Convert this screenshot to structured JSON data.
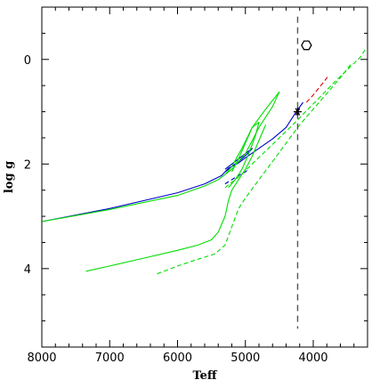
{
  "chart_data": {
    "type": "line",
    "title": "",
    "xlabel": "Teff",
    "ylabel": "log g",
    "xlim": [
      8000,
      3200
    ],
    "ylim": [
      5.5,
      -1.0
    ],
    "x_reversed": true,
    "y_reversed": true,
    "xticks": [
      8000,
      7000,
      6000,
      5000,
      4000
    ],
    "yticks": [
      0,
      2,
      4
    ],
    "xtick_labels": [
      "8000",
      "7000",
      "6000",
      "5000",
      "4000"
    ],
    "ytick_labels": [
      "0",
      "2",
      "4"
    ],
    "grid": false,
    "legend": "none",
    "series": [
      {
        "color": "#0000cc",
        "style": "solid",
        "points": [
          [
            8000,
            3.1
          ],
          [
            7000,
            2.85
          ],
          [
            6000,
            2.55
          ],
          [
            5600,
            2.38
          ],
          [
            5350,
            2.22
          ],
          [
            5250,
            2.08
          ],
          [
            5100,
            1.98
          ],
          [
            5000,
            1.88
          ],
          [
            4800,
            1.7
          ],
          [
            4600,
            1.52
          ],
          [
            4400,
            1.3
          ],
          [
            4250,
            1.0
          ],
          [
            4150,
            0.82
          ]
        ]
      },
      {
        "color": "#0000cc",
        "style": "solid",
        "points": [
          [
            5300,
            2.1
          ],
          [
            5150,
            1.95
          ],
          [
            5000,
            1.8
          ],
          [
            4900,
            1.7
          ],
          [
            4950,
            1.78
          ],
          [
            5050,
            1.9
          ],
          [
            5150,
            2.0
          ],
          [
            5300,
            2.15
          ]
        ]
      },
      {
        "color": "#0000cc",
        "style": "dashed",
        "points": [
          [
            5300,
            2.38
          ],
          [
            5200,
            2.3
          ],
          [
            5100,
            2.22
          ],
          [
            5000,
            2.15
          ],
          [
            4950,
            2.08
          ]
        ]
      },
      {
        "color": "#00dd00",
        "style": "solid",
        "points": [
          [
            8000,
            3.1
          ],
          [
            7000,
            2.87
          ],
          [
            6000,
            2.6
          ],
          [
            5600,
            2.42
          ],
          [
            5400,
            2.3
          ],
          [
            5300,
            2.2
          ],
          [
            5200,
            2.05
          ],
          [
            5050,
            1.7
          ],
          [
            4900,
            1.3
          ],
          [
            4700,
            0.95
          ],
          [
            4500,
            0.62
          ],
          [
            4600,
            0.9
          ],
          [
            4800,
            1.3
          ],
          [
            5000,
            1.8
          ],
          [
            5200,
            2.1
          ],
          [
            5300,
            2.2
          ]
        ]
      },
      {
        "color": "#00dd00",
        "style": "solid",
        "points": [
          [
            5200,
            2.15
          ],
          [
            5100,
            1.9
          ],
          [
            5000,
            1.6
          ],
          [
            4900,
            1.3
          ],
          [
            4800,
            1.2
          ],
          [
            4850,
            1.45
          ],
          [
            4950,
            1.8
          ],
          [
            5050,
            2.1
          ],
          [
            5150,
            2.3
          ],
          [
            5250,
            2.45
          ]
        ]
      },
      {
        "color": "#00dd00",
        "style": "solid",
        "points": [
          [
            7350,
            4.05
          ],
          [
            7000,
            3.95
          ],
          [
            6500,
            3.8
          ],
          [
            6000,
            3.65
          ],
          [
            5700,
            3.55
          ],
          [
            5500,
            3.45
          ],
          [
            5400,
            3.3
          ],
          [
            5300,
            3.0
          ],
          [
            5250,
            2.7
          ],
          [
            5200,
            2.5
          ],
          [
            5100,
            2.3
          ],
          [
            5000,
            2.1
          ],
          [
            4900,
            1.85
          ],
          [
            4800,
            1.55
          ],
          [
            4700,
            1.25
          ]
        ]
      },
      {
        "color": "#00dd00",
        "style": "dashed",
        "points": [
          [
            6300,
            4.1
          ],
          [
            6000,
            3.95
          ],
          [
            5700,
            3.82
          ],
          [
            5450,
            3.72
          ],
          [
            5300,
            3.55
          ],
          [
            5200,
            3.2
          ],
          [
            5100,
            2.85
          ],
          [
            5000,
            2.65
          ],
          [
            4800,
            2.3
          ],
          [
            4600,
            1.95
          ],
          [
            4400,
            1.6
          ],
          [
            4200,
            1.25
          ],
          [
            4000,
            0.95
          ],
          [
            3800,
            0.65
          ],
          [
            3600,
            0.35
          ],
          [
            3450,
            0.1
          ]
        ]
      },
      {
        "color": "#00dd00",
        "style": "dashed",
        "points": [
          [
            5300,
            2.45
          ],
          [
            5100,
            2.25
          ],
          [
            4900,
            2.0
          ],
          [
            4700,
            1.75
          ],
          [
            4500,
            1.5
          ],
          [
            4300,
            1.25
          ],
          [
            4100,
            0.98
          ],
          [
            3900,
            0.72
          ],
          [
            3700,
            0.45
          ],
          [
            3500,
            0.2
          ],
          [
            3300,
            -0.05
          ],
          [
            3220,
            -0.22
          ]
        ]
      },
      {
        "color": "#dd0000",
        "style": "dashed",
        "points": [
          [
            4100,
            0.82
          ],
          [
            4000,
            0.68
          ],
          [
            3900,
            0.52
          ],
          [
            3780,
            0.32
          ]
        ]
      }
    ],
    "markers": [
      {
        "symbol": "asterisk",
        "x": 4230,
        "y": 1.0,
        "color": "#000000"
      },
      {
        "symbol": "hexagon",
        "x": 4100,
        "y": -0.27,
        "color": "#000000"
      }
    ],
    "vertical_lines": [
      {
        "x": 4230,
        "style": "dashed",
        "color": "#555555"
      }
    ]
  }
}
